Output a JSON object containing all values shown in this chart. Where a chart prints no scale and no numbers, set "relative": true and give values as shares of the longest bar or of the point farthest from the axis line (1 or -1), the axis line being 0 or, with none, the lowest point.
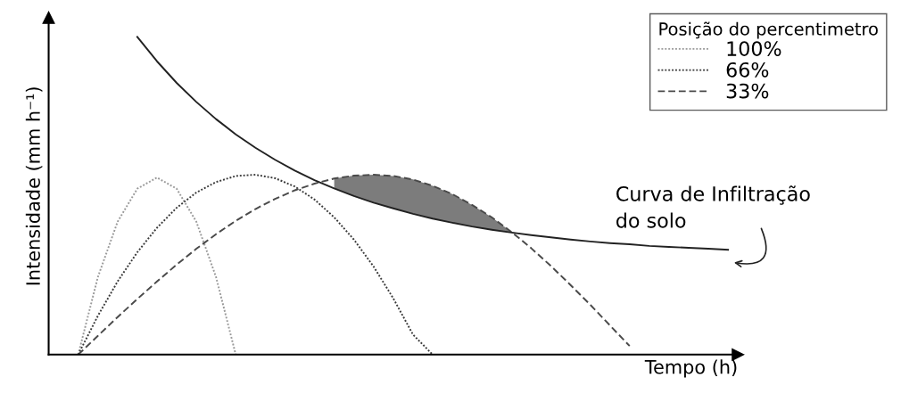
{
  "chart_data": {
    "type": "line",
    "relative": true,
    "xlabel": "Tempo (h)",
    "ylabel": "Intensidade (mm h⁻¹)",
    "legend_title": "Posição do percentimetro",
    "legend": "top right",
    "categories": [
      null,
      null,
      null,
      null,
      null,
      null,
      null,
      null,
      null,
      null,
      null,
      null,
      null,
      null,
      null,
      null,
      null,
      null,
      null,
      null,
      null,
      null,
      null,
      null,
      null,
      null,
      null,
      null,
      null,
      null,
      null,
      null,
      null,
      null
    ],
    "series": [
      {
        "name": "100%",
        "color": "#9a9a9a",
        "line_style": "dotted",
        "values": [
          0,
          0.244,
          0.418,
          0.522,
          0.557,
          0.522,
          0.418,
          0.244,
          0,
          null,
          null,
          null,
          null,
          null,
          null,
          null,
          null,
          null,
          null,
          null,
          null,
          null,
          null,
          null,
          null,
          null,
          null,
          null,
          null,
          null,
          null,
          null,
          null,
          null
        ]
      },
      {
        "name": "66%",
        "color": "#3a3a3a",
        "line_style": "dotted",
        "values": [
          0,
          0.122,
          0.23,
          0.322,
          0.399,
          0.462,
          0.51,
          0.543,
          0.562,
          0.566,
          0.555,
          0.529,
          0.488,
          0.432,
          0.362,
          0.277,
          0.177,
          0.063,
          0,
          null,
          null,
          null,
          null,
          null,
          null,
          null,
          null,
          null,
          null,
          null,
          null,
          null,
          null,
          null
        ]
      },
      {
        "name": "33%",
        "color": "#4a4a4a",
        "line_style": "dashed",
        "values": [
          0,
          0.059,
          0.118,
          0.175,
          0.23,
          0.283,
          0.333,
          0.379,
          0.421,
          0.458,
          0.49,
          0.517,
          0.538,
          0.554,
          0.563,
          0.566,
          0.562,
          0.551,
          0.531,
          0.505,
          0.471,
          0.432,
          0.386,
          0.335,
          0.279,
          0.219,
          0.157,
          0.092,
          0.027,
          null,
          null,
          null,
          null,
          null
        ],
        "lower": [
          null,
          null,
          null,
          null,
          null,
          null,
          null,
          null,
          null,
          null,
          null,
          null,
          null,
          0.523,
          0.499,
          0.478,
          0.46,
          0.443,
          0.428,
          0.415,
          0.403,
          0.393,
          0.384,
          0.376,
          null,
          null,
          null,
          null,
          null,
          null,
          null,
          null,
          null,
          null
        ],
        "upper": [
          null,
          null,
          null,
          null,
          null,
          null,
          null,
          null,
          null,
          null,
          null,
          null,
          null,
          0.554,
          0.563,
          0.566,
          0.562,
          0.551,
          0.531,
          0.505,
          0.471,
          0.432,
          0.386,
          0.376,
          null,
          null,
          null,
          null,
          null,
          null,
          null,
          null,
          null,
          null
        ]
      },
      {
        "color": "#222222",
        "line_style": "solid",
        "values": [
          null,
          null,
          null,
          1.0,
          0.923,
          0.855,
          0.795,
          0.741,
          0.693,
          0.651,
          0.613,
          0.579,
          0.549,
          0.523,
          0.499,
          0.478,
          0.46,
          0.443,
          0.428,
          0.415,
          0.403,
          0.393,
          0.384,
          0.376,
          0.369,
          0.362,
          0.356,
          0.351,
          0.347,
          0.342,
          0.339,
          0.336,
          0.333,
          0.33
        ]
      }
    ],
    "annotations": [
      "Curva de Infiltração\ndo solo"
    ]
  }
}
